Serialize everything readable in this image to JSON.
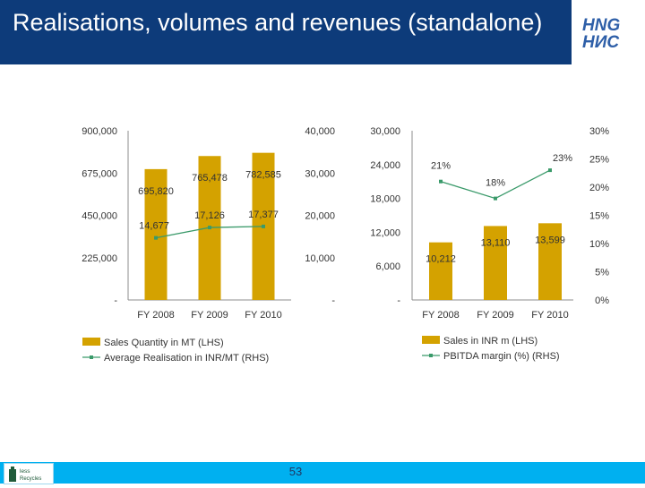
{
  "title": "Realisations, volumes and revenues (standalone)",
  "page_number": "53",
  "footer_logo": {
    "text": "less Recycles"
  },
  "colors": {
    "bar": "#d4a200",
    "line": "#3a9a6a",
    "header": "#0d3b7a",
    "footer": "#00b0f0"
  },
  "chart_data": [
    {
      "type": "bar+line",
      "categories": [
        "FY 2008",
        "FY 2009",
        "FY 2010"
      ],
      "left_axis": {
        "ticks": [
          "-",
          "225,000",
          "450,000",
          "675,000",
          "900,000"
        ],
        "ylim": [
          0,
          900000
        ]
      },
      "right_axis": {
        "ticks": [
          "-",
          "10,000",
          "20,000",
          "30,000",
          "40,000"
        ],
        "ylim": [
          0,
          40000
        ]
      },
      "series": [
        {
          "name": "Sales Quantity in MT (LHS)",
          "kind": "bar",
          "axis": "left",
          "values": [
            695820,
            765478,
            782585
          ],
          "labels": [
            "695,820",
            "765,478",
            "782,585"
          ]
        },
        {
          "name": "Average Realisation in INR/MT (RHS)",
          "kind": "line",
          "axis": "right",
          "values": [
            14677,
            17126,
            17377
          ],
          "labels": [
            "14,677",
            "17,126",
            "17,377"
          ]
        }
      ],
      "legend_position": "bottom"
    },
    {
      "type": "bar+line",
      "categories": [
        "FY 2008",
        "FY 2009",
        "FY 2010"
      ],
      "left_axis": {
        "ticks": [
          "-",
          "6,000",
          "12,000",
          "18,000",
          "24,000",
          "30,000"
        ],
        "ylim": [
          0,
          30000
        ]
      },
      "right_axis": {
        "ticks": [
          "0%",
          "5%",
          "10%",
          "15%",
          "20%",
          "25%",
          "30%"
        ],
        "ylim": [
          0,
          30
        ]
      },
      "series": [
        {
          "name": "Sales in INR m (LHS)",
          "kind": "bar",
          "axis": "left",
          "values": [
            10212,
            13110,
            13599
          ],
          "labels": [
            "10,212",
            "13,110",
            "13,599"
          ]
        },
        {
          "name": "PBITDA margin (%) (RHS)",
          "kind": "line",
          "axis": "right",
          "values": [
            21,
            18,
            23
          ],
          "labels": [
            "21%",
            "18%",
            "23%"
          ]
        }
      ],
      "legend_position": "bottom"
    }
  ]
}
